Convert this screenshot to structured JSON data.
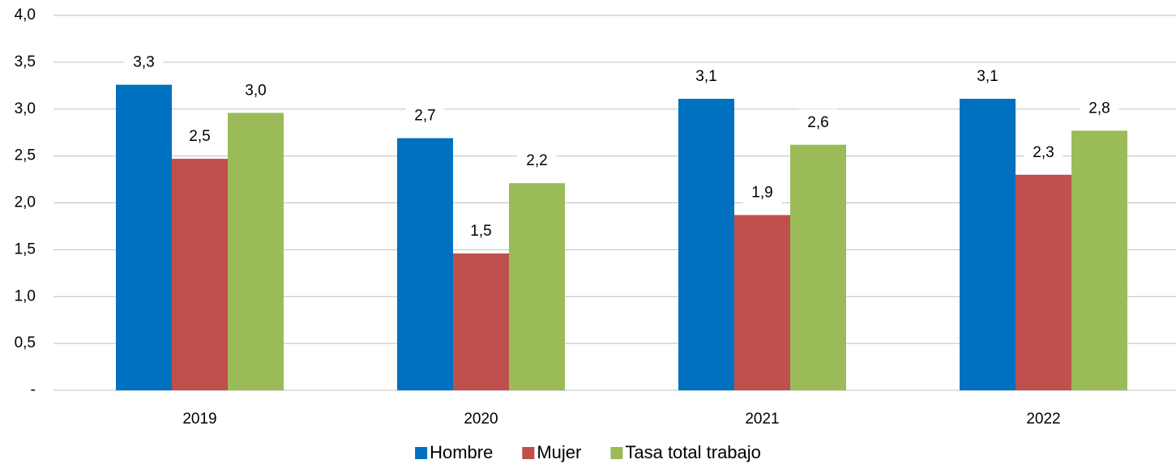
{
  "chart_data": {
    "type": "bar",
    "categories": [
      "2019",
      "2020",
      "2021",
      "2022"
    ],
    "series": [
      {
        "name": "Hombre",
        "color": "#0070c0",
        "values": [
          3.26,
          2.69,
          3.11,
          3.11
        ],
        "value_labels": [
          "3,3",
          "2,7",
          "3,1",
          "3,1"
        ]
      },
      {
        "name": "Mujer",
        "color": "#c0504d",
        "values": [
          2.47,
          1.46,
          1.87,
          2.3
        ],
        "value_labels": [
          "2,5",
          "1,5",
          "1,9",
          "2,3"
        ]
      },
      {
        "name": "Tasa total trabajo",
        "color": "#9bbb59",
        "values": [
          2.96,
          2.21,
          2.62,
          2.77
        ],
        "value_labels": [
          "3,0",
          "2,2",
          "2,6",
          "2,8"
        ]
      }
    ],
    "ylim": [
      0,
      4
    ],
    "yticks": [
      {
        "value": 0,
        "label": "-"
      },
      {
        "value": 0.5,
        "label": "0,5"
      },
      {
        "value": 1,
        "label": "1,0"
      },
      {
        "value": 1.5,
        "label": "1,5"
      },
      {
        "value": 2,
        "label": "2,0"
      },
      {
        "value": 2.5,
        "label": "2,5"
      },
      {
        "value": 3,
        "label": "3,0"
      },
      {
        "value": 3.5,
        "label": "3,5"
      },
      {
        "value": 4,
        "label": "4,0"
      }
    ],
    "grid": true,
    "legend": "bottom"
  }
}
